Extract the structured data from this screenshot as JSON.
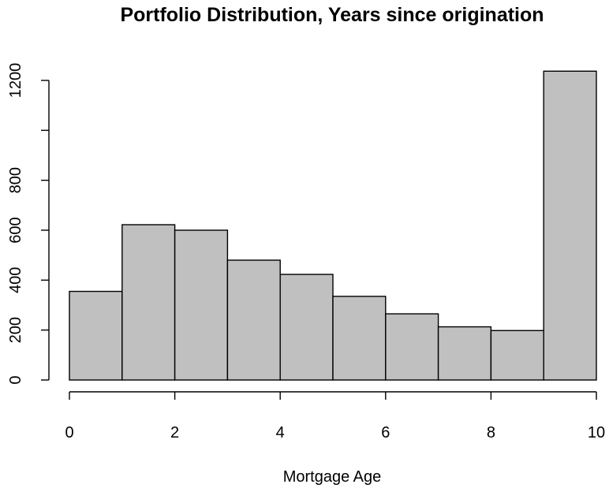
{
  "chart_data": {
    "type": "bar",
    "title": "Portfolio Distribution, Years since origination",
    "xlabel": "Mortgage Age",
    "ylabel": "",
    "bins": [
      {
        "x0": 0,
        "x1": 1,
        "value": 355
      },
      {
        "x0": 1,
        "x1": 2,
        "value": 622
      },
      {
        "x0": 2,
        "x1": 3,
        "value": 600
      },
      {
        "x0": 3,
        "x1": 4,
        "value": 480
      },
      {
        "x0": 4,
        "x1": 5,
        "value": 423
      },
      {
        "x0": 5,
        "x1": 6,
        "value": 335
      },
      {
        "x0": 6,
        "x1": 7,
        "value": 265
      },
      {
        "x0": 7,
        "x1": 8,
        "value": 213
      },
      {
        "x0": 8,
        "x1": 9,
        "value": 198
      },
      {
        "x0": 9,
        "x1": 10,
        "value": 1237
      }
    ],
    "xlim": [
      0,
      10
    ],
    "ylim": [
      0,
      1200
    ],
    "x_ticks": [
      0,
      2,
      4,
      6,
      8,
      10
    ],
    "y_ticks": [
      0,
      200,
      400,
      600,
      800,
      1000,
      1200
    ],
    "x_tick_labels": [
      "0",
      "2",
      "4",
      "6",
      "8",
      "10"
    ],
    "y_tick_labels": [
      "0",
      "200",
      "400",
      "600",
      "800",
      "",
      "1200"
    ],
    "bar_color": "#c0c0c0",
    "grid": false,
    "legend": "none"
  }
}
